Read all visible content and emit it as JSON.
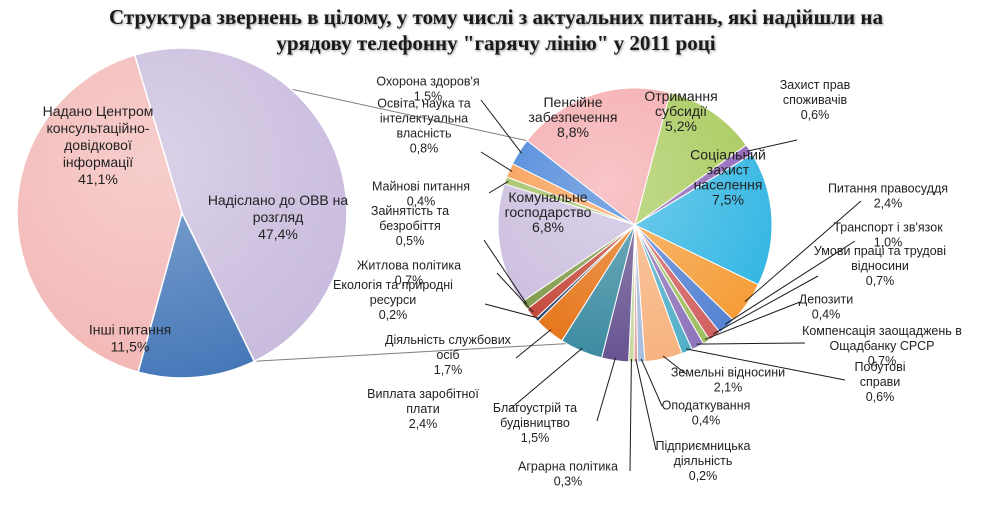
{
  "title": {
    "line1": "Структура звернень в цілому, у тому числі з актуальних питань, які надійшли на",
    "line2": "урядову телефонну \"гарячу лінію\" у 2011 році"
  },
  "chart_data": [
    {
      "type": "pie",
      "name": "overall",
      "slices": [
        {
          "label_lines": [
            "Надано Центром",
            "консультаційно-",
            "довідкової",
            "інформації"
          ],
          "value_text": "41,1%",
          "value": 41.1,
          "color": "#f2b4b2"
        },
        {
          "label_lines": [
            "Надіслано до ОВВ на",
            "розгляд"
          ],
          "value_text": "47,4%",
          "value": 47.4,
          "color": "#c7b9dc"
        },
        {
          "label_lines": [
            "Інші питання"
          ],
          "value_text": "11,5%",
          "value": 11.5,
          "color": "#3f73b6"
        }
      ]
    },
    {
      "type": "pie",
      "name": "detail",
      "slices": [
        {
          "label_lines": [
            "Пенсійне",
            "забезпечення"
          ],
          "value_text": "8,8%",
          "value": 8.8,
          "color": "#f4a6aa"
        },
        {
          "label_lines": [
            "Отримання",
            "субсидії"
          ],
          "value_text": "5,2%",
          "value": 5.2,
          "color": "#a5c855"
        },
        {
          "label_lines": [
            "Захист прав",
            "споживачів"
          ],
          "value_text": "0,6%",
          "value": 0.6,
          "color": "#8c5fb6"
        },
        {
          "label_lines": [
            "Соціальний",
            "захист",
            "населення"
          ],
          "value_text": "7,5%",
          "value": 7.5,
          "color": "#2cb4e2"
        },
        {
          "label_lines": [
            "Питання правосуддя"
          ],
          "value_text": "2,4%",
          "value": 2.4,
          "color": "#f59a32"
        },
        {
          "label_lines": [
            "Транспорт і зв'язок"
          ],
          "value_text": "1,0%",
          "value": 1.0,
          "color": "#4f7ed1"
        },
        {
          "label_lines": [
            "Умови праці та трудові",
            "відносини"
          ],
          "value_text": "0,7%",
          "value": 0.7,
          "color": "#d05b5b"
        },
        {
          "label_lines": [
            "Депозити"
          ],
          "value_text": "0,4%",
          "value": 0.4,
          "color": "#9bbb59"
        },
        {
          "label_lines": [
            "Компенсація заощаджень в",
            "Ощадбанку СРСР"
          ],
          "value_text": "0,7%",
          "value": 0.7,
          "color": "#8a6fb8"
        },
        {
          "label_lines": [
            "Побутові",
            "справи"
          ],
          "value_text": "0,6%",
          "value": 0.6,
          "color": "#4bacc6"
        },
        {
          "label_lines": [
            "Земельні відносини"
          ],
          "value_text": "2,1%",
          "value": 2.1,
          "color": "#f7b07a"
        },
        {
          "label_lines": [
            "Оподаткування"
          ],
          "value_text": "0,4%",
          "value": 0.4,
          "color": "#a3b9db"
        },
        {
          "label_lines": [
            "Підприємницька",
            "діяльність"
          ],
          "value_text": "0,2%",
          "value": 0.2,
          "color": "#e59c9a"
        },
        {
          "label_lines": [
            "Аграрна політика"
          ],
          "value_text": "0,3%",
          "value": 0.3,
          "color": "#c4d79b"
        },
        {
          "label_lines": [
            "Благоустрій та",
            "будівництво"
          ],
          "value_text": "1,5%",
          "value": 1.5,
          "color": "#5f4b8b"
        },
        {
          "label_lines": [
            "Виплата заробітної",
            "плати"
          ],
          "value_text": "2,4%",
          "value": 2.4,
          "color": "#31859c"
        },
        {
          "label_lines": [
            "Діяльність службових",
            "осіб"
          ],
          "value_text": "1,7%",
          "value": 1.7,
          "color": "#e46c0a"
        },
        {
          "label_lines": [
            "Екологія та природні",
            "ресурси"
          ],
          "value_text": "0,2%",
          "value": 0.2,
          "color": "#17375e"
        },
        {
          "label_lines": [
            "Житлова політика"
          ],
          "value_text": "0,7%",
          "value": 0.7,
          "color": "#c0392b"
        },
        {
          "label_lines": [
            "Зайнятість та",
            "безробіття"
          ],
          "value_text": "0,5%",
          "value": 0.5,
          "color": "#77933c"
        },
        {
          "label_lines": [
            "Комунальне",
            "господарство"
          ],
          "value_text": "6,8%",
          "value": 6.8,
          "color": "#c7b9dc"
        },
        {
          "label_lines": [
            "Майнові питання"
          ],
          "value_text": "0,4%",
          "value": 0.4,
          "color": "#9bbb59"
        },
        {
          "label_lines": [
            "Освіта, наука та",
            "інтелектуальна",
            "власність"
          ],
          "value_text": "0,8%",
          "value": 0.8,
          "color": "#f79646"
        },
        {
          "label_lines": [
            "Охорона здоров'я"
          ],
          "value_text": "1,5%",
          "value": 1.5,
          "color": "#3a7bd5"
        }
      ]
    }
  ]
}
